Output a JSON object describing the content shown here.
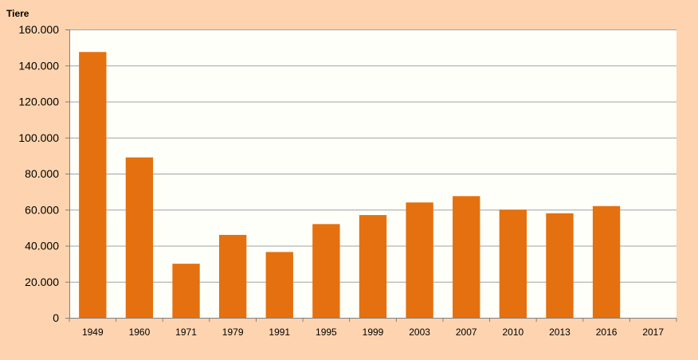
{
  "chart_data": {
    "type": "bar",
    "ylabel": "Tiere",
    "categories": [
      "1949",
      "1960",
      "1971",
      "1979",
      "1991",
      "1995",
      "1999",
      "2003",
      "2007",
      "2010",
      "2013",
      "2016",
      "2017"
    ],
    "values": [
      147500,
      89000,
      30000,
      46000,
      36500,
      52000,
      57000,
      64000,
      67500,
      60000,
      58000,
      62000,
      null
    ],
    "ylim": [
      0,
      160000
    ],
    "yticks": [
      0,
      20000,
      40000,
      60000,
      80000,
      100000,
      120000,
      140000,
      160000
    ],
    "ytick_labels": [
      "0",
      "20.000",
      "40.000",
      "60.000",
      "80.000",
      "100.000",
      "120.000",
      "140.000",
      "160.000"
    ],
    "grid": true,
    "legend": "none",
    "colors": {
      "bar": "#E5700F",
      "background": "#FDD4AF",
      "plot_area": "#FFFFFA"
    }
  }
}
